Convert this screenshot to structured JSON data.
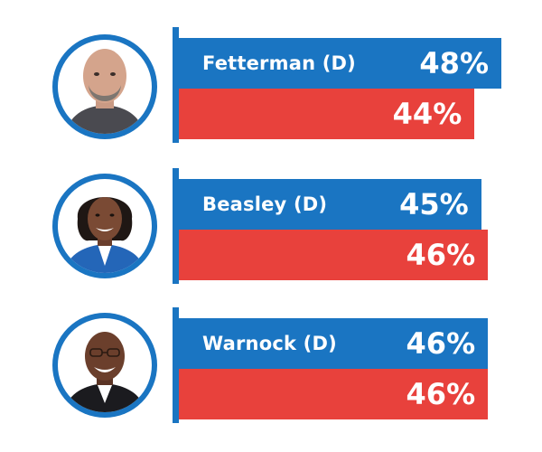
{
  "chart_data": {
    "type": "bar",
    "categories": [
      "Fetterman (D)",
      "Beasley (D)",
      "Warnock (D)"
    ],
    "series": [
      {
        "values": [
          48,
          45,
          46
        ],
        "labels": [
          "48%",
          "45%",
          "46%"
        ],
        "color": "#1a75c2"
      },
      {
        "values": [
          44,
          46,
          46
        ],
        "labels": [
          "44%",
          "46%",
          "46%"
        ],
        "color": "#e8413c"
      }
    ],
    "xlim": [
      0,
      48
    ],
    "orientation": "horizontal"
  },
  "candidates": [
    {
      "name": "Fetterman (D)",
      "dem_pct": "48%",
      "rep_pct": "44%",
      "photo_icon": "fetterman-photo"
    },
    {
      "name": "Beasley (D)",
      "dem_pct": "45%",
      "rep_pct": "46%",
      "photo_icon": "beasley-photo"
    },
    {
      "name": "Warnock (D)",
      "dem_pct": "46%",
      "rep_pct": "46%",
      "photo_icon": "warnock-photo"
    }
  ],
  "colors": {
    "dem": "#1a75c2",
    "rep": "#e8413c",
    "ring": "#1a75c2"
  }
}
